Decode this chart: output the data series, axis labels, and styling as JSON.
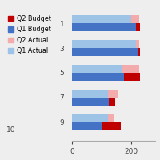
{
  "categories": [
    1,
    3,
    5,
    7,
    9
  ],
  "q1_actual": [
    200,
    215,
    170,
    120,
    120
  ],
  "q2_actual": [
    25,
    10,
    55,
    35,
    20
  ],
  "q1_budget": [
    215,
    220,
    175,
    125,
    100
  ],
  "q2_budget": [
    15,
    10,
    55,
    20,
    65
  ],
  "colors": {
    "q1_actual": "#9DC3E6",
    "q2_actual": "#F4ABAB",
    "q1_budget": "#4472C4",
    "q2_budget": "#C00000"
  },
  "legend_labels": [
    "Q2 Budget",
    "Q1 Budget",
    "Q2 Actual",
    "Q1 Actual"
  ],
  "legend_colors": [
    "#C00000",
    "#4472C4",
    "#F4ABAB",
    "#9DC3E6"
  ],
  "xlim": [
    0,
    280
  ],
  "xtick_positions": [
    0,
    200
  ],
  "xtick_labels": [
    "0",
    "200"
  ],
  "bar_height": 0.32,
  "background_color": "#eeeeee",
  "fig_color": "#eeeeee"
}
